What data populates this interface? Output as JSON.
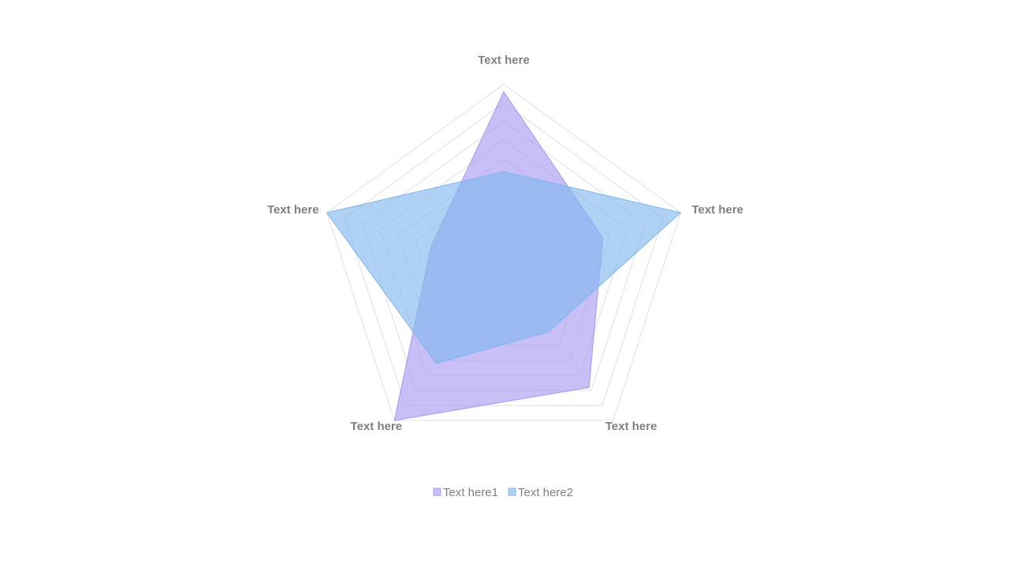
{
  "chart_data": {
    "type": "radar",
    "categories": [
      "Text here",
      "Text here",
      "Text here",
      "Text here",
      "Text here"
    ],
    "series": [
      {
        "name": "Text here1",
        "color": "#a898f2",
        "values": [
          9.6,
          5.6,
          7.8,
          10,
          4.1
        ]
      },
      {
        "name": "Text here2",
        "color": "#7eb6ee",
        "values": [
          5.3,
          10,
          4.1,
          6.2,
          10
        ]
      }
    ],
    "ylim": [
      0,
      10
    ],
    "grid_levels": 10,
    "legend": "bottom"
  }
}
